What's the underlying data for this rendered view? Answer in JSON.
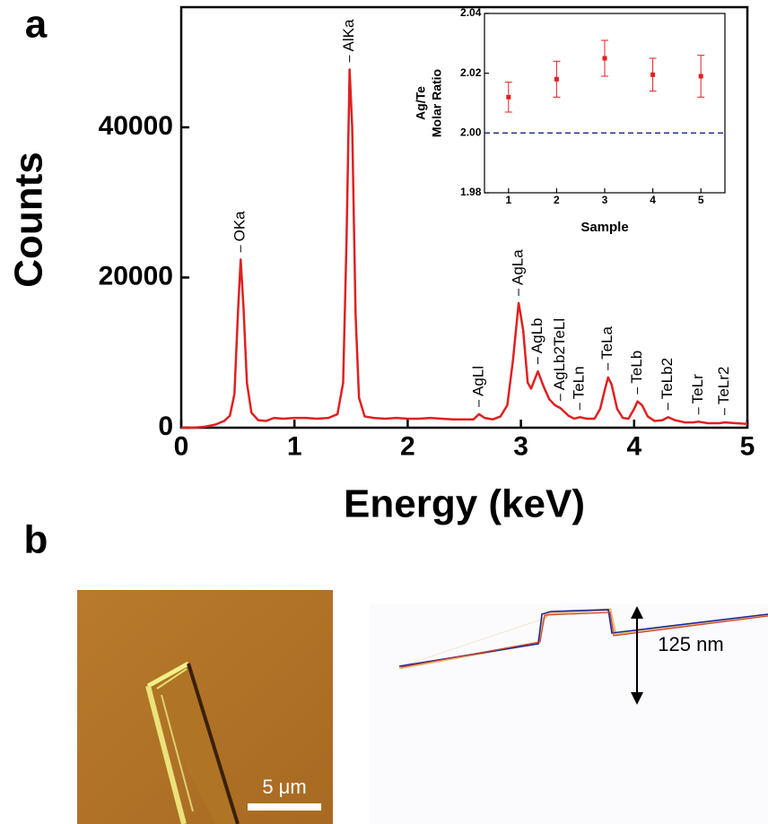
{
  "chart_data": [
    {
      "type": "line",
      "xlabel": "Energy (keV)",
      "ylabel": "Counts",
      "color": "#e02020",
      "xlim": [
        0,
        5
      ],
      "ylim": [
        0,
        56000
      ],
      "xticks": [
        0,
        1,
        2,
        3,
        4,
        5
      ],
      "yticks": [
        0,
        20000,
        40000
      ],
      "x": [
        0,
        0.1,
        0.2,
        0.3,
        0.38,
        0.43,
        0.47,
        0.5,
        0.525,
        0.55,
        0.58,
        0.62,
        0.68,
        0.75,
        0.82,
        0.9,
        1.0,
        1.1,
        1.2,
        1.3,
        1.38,
        1.43,
        1.46,
        1.487,
        1.51,
        1.54,
        1.57,
        1.62,
        1.7,
        1.8,
        1.9,
        2.0,
        2.1,
        2.2,
        2.3,
        2.4,
        2.5,
        2.58,
        2.63,
        2.68,
        2.75,
        2.82,
        2.88,
        2.93,
        2.98,
        3.02,
        3.06,
        3.09,
        3.15,
        3.2,
        3.25,
        3.3,
        3.35,
        3.42,
        3.47,
        3.52,
        3.58,
        3.65,
        3.7,
        3.74,
        3.77,
        3.8,
        3.85,
        3.9,
        3.95,
        4.0,
        4.03,
        4.07,
        4.12,
        4.18,
        4.25,
        4.3,
        4.36,
        4.45,
        4.52,
        4.57,
        4.65,
        4.75,
        4.8,
        4.9,
        5.0
      ],
      "values": [
        0,
        0,
        100,
        400,
        900,
        1600,
        4500,
        15000,
        22400,
        16000,
        6000,
        2000,
        1000,
        900,
        1300,
        1200,
        1300,
        1300,
        1200,
        1300,
        1800,
        6000,
        25000,
        47700,
        40000,
        15000,
        4000,
        1500,
        1300,
        1200,
        1300,
        1200,
        1200,
        1300,
        1200,
        1100,
        1100,
        1100,
        1800,
        1300,
        1100,
        1500,
        3000,
        9000,
        16600,
        13000,
        6000,
        5200,
        7500,
        5500,
        3800,
        3000,
        2600,
        1600,
        1200,
        1400,
        1200,
        1200,
        2500,
        5000,
        6700,
        5800,
        2500,
        1300,
        1200,
        2500,
        3500,
        3000,
        1500,
        900,
        1000,
        1400,
        1000,
        700,
        700,
        800,
        600,
        600,
        700,
        600,
        500
      ],
      "annotations": [
        {
          "text": "OKa",
          "x": 0.525
        },
        {
          "text": "AlKa",
          "x": 1.487
        },
        {
          "text": "AgLl",
          "x": 2.63
        },
        {
          "text": "AgLa",
          "x": 2.98
        },
        {
          "text": "AgLb",
          "x": 3.15
        },
        {
          "text": "AgLb2TeLl",
          "x": 3.35
        },
        {
          "text": "TeLn",
          "x": 3.52
        },
        {
          "text": "TeLa",
          "x": 3.77
        },
        {
          "text": "TeLb",
          "x": 4.03
        },
        {
          "text": "TeLb2",
          "x": 4.3
        },
        {
          "text": "TeLr",
          "x": 4.57
        },
        {
          "text": "TeLr2",
          "x": 4.8
        }
      ]
    },
    {
      "type": "scatter",
      "xlabel": "Sample",
      "ylabel_lines": [
        "Ag/Te",
        "Molar Ratio"
      ],
      "color": "#e02020",
      "xlim": [
        0.5,
        5.5
      ],
      "ylim": [
        1.98,
        2.04
      ],
      "xticks": [
        1,
        2,
        3,
        4,
        5
      ],
      "yticks": [
        1.98,
        {
          "value": 2,
          "label": "2.00"
        },
        2.02,
        2.04
      ],
      "x": [
        1,
        2,
        3,
        4,
        5
      ],
      "values": [
        2.012,
        2.018,
        2.025,
        2.0195,
        2.019
      ],
      "errors": [
        0.005,
        0.006,
        0.006,
        0.0055,
        0.007
      ],
      "reference_line": {
        "value": 2,
        "color": "#1a237e"
      }
    }
  ],
  "panel_labels": [
    "a",
    "b"
  ],
  "afm_image": {
    "scale_bar": "5 μm"
  },
  "height_profile": {
    "step_height": "125 nm"
  }
}
